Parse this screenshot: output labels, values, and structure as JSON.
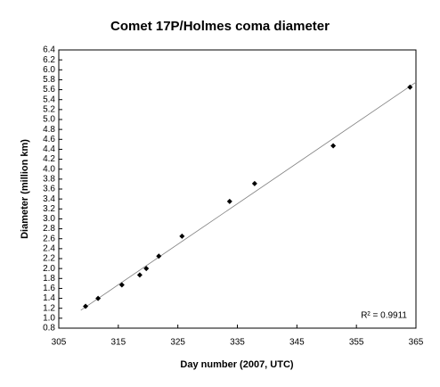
{
  "chart_data": {
    "type": "scatter",
    "title": "Comet 17P/Holmes coma diameter",
    "x_label": "Day number (2007, UTC)",
    "y_label": "Diameter (million km)",
    "x": [
      309.5,
      311.6,
      315.6,
      318.6,
      319.7,
      321.8,
      325.7,
      333.7,
      337.9,
      351.1,
      364.0
    ],
    "series": [
      {
        "name": "Diameter",
        "color": "#000000",
        "values": [
          1.24,
          1.4,
          1.67,
          1.87,
          2.0,
          2.25,
          2.65,
          3.35,
          3.71,
          4.47,
          5.65
        ]
      }
    ],
    "trendline": {
      "x": [
        308.7,
        365
      ],
      "y": [
        1.16,
        5.75
      ],
      "color": "#808080"
    },
    "annotation": "R² = 0.9911",
    "xlim": [
      305,
      365
    ],
    "xticks": [
      305,
      315,
      325,
      335,
      345,
      355,
      365
    ],
    "ylim": [
      0.8,
      6.4
    ],
    "yticks": [
      0.8,
      {
        "value": 1.0,
        "label": "1.0"
      },
      1.2,
      1.4,
      1.6,
      1.8,
      {
        "value": 2.0,
        "label": "2.0"
      },
      2.2,
      2.4,
      2.6,
      2.8,
      {
        "value": 3.0,
        "label": "3.0"
      },
      3.2,
      3.4,
      3.6,
      3.8,
      {
        "value": 4.0,
        "label": "4.0"
      },
      4.2,
      4.4,
      4.6,
      4.8,
      {
        "value": 5.0,
        "label": "5.0"
      },
      5.2,
      5.4,
      5.6,
      5.8,
      {
        "value": 6.0,
        "label": "6.0"
      },
      6.2,
      6.4
    ],
    "grid": false
  }
}
